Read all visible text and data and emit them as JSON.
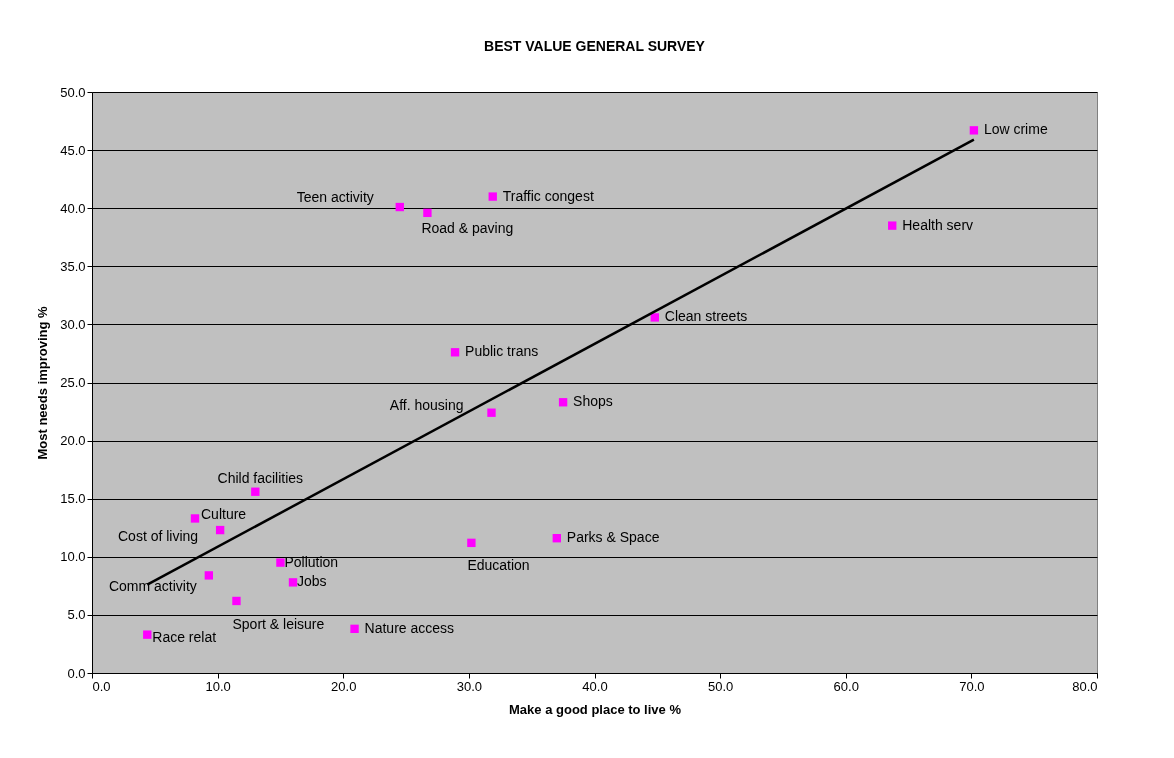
{
  "chart_data": {
    "type": "scatter",
    "title": "BEST VALUE GENERAL SURVEY",
    "xlabel": "Make a good place to live %",
    "ylabel": "Most needs improving %",
    "xlim": [
      0,
      80
    ],
    "ylim": [
      0,
      50
    ],
    "xticks": [
      {
        "value": 0,
        "label": "0.0"
      },
      {
        "value": 10,
        "label": "10.0"
      },
      {
        "value": 20,
        "label": "20.0"
      },
      {
        "value": 30,
        "label": "30.0"
      },
      {
        "value": 40,
        "label": "40.0"
      },
      {
        "value": 50,
        "label": "50.0"
      },
      {
        "value": 60,
        "label": "60.0"
      },
      {
        "value": 70,
        "label": "70.0"
      },
      {
        "value": 80,
        "label": "80.0"
      }
    ],
    "yticks": [
      {
        "value": 0,
        "label": "0.0"
      },
      {
        "value": 5,
        "label": "5.0"
      },
      {
        "value": 10,
        "label": "10.0"
      },
      {
        "value": 15,
        "label": "15.0"
      },
      {
        "value": 20,
        "label": "20.0"
      },
      {
        "value": 25,
        "label": "25.0"
      },
      {
        "value": 30,
        "label": "30.0"
      },
      {
        "value": 35,
        "label": "35.0"
      },
      {
        "value": 40,
        "label": "40.0"
      },
      {
        "value": 45,
        "label": "45.0"
      },
      {
        "value": 50,
        "label": "50.0"
      }
    ],
    "grid": "y",
    "series": [
      {
        "color": "#ff00ff",
        "marker": "square",
        "x": [
          70.2,
          63.7,
          44.8,
          31.9,
          24.5,
          26.7,
          28.9,
          31.8,
          37.5,
          13.0,
          8.2,
          10.2,
          9.3,
          15.0,
          16.0,
          11.5,
          4.4,
          20.9,
          30.2,
          37.0
        ],
        "values": [
          46.7,
          38.5,
          30.6,
          41.0,
          40.1,
          39.6,
          27.6,
          22.4,
          23.3,
          15.6,
          13.3,
          12.3,
          8.4,
          9.5,
          7.8,
          6.2,
          3.3,
          3.8,
          11.2,
          11.6
        ],
        "value_labels": [
          "Low crime",
          "Health serv",
          "Clean streets",
          "Traffic congest",
          "Teen activity",
          "Road & paving",
          "Public trans",
          "Aff. housing",
          "Shops",
          "Child facilities",
          "Culture",
          "Cost of living",
          "Comm activity",
          "Pollution",
          "Jobs",
          "Sport & leisure",
          "Race relat",
          "Nature access",
          "Education",
          "Parks & Space"
        ]
      },
      {
        "type": "line",
        "color": "#000000",
        "line_style": "solid",
        "x": [
          4.4,
          70.2
        ],
        "values": [
          7.6,
          45.9
        ]
      }
    ]
  }
}
